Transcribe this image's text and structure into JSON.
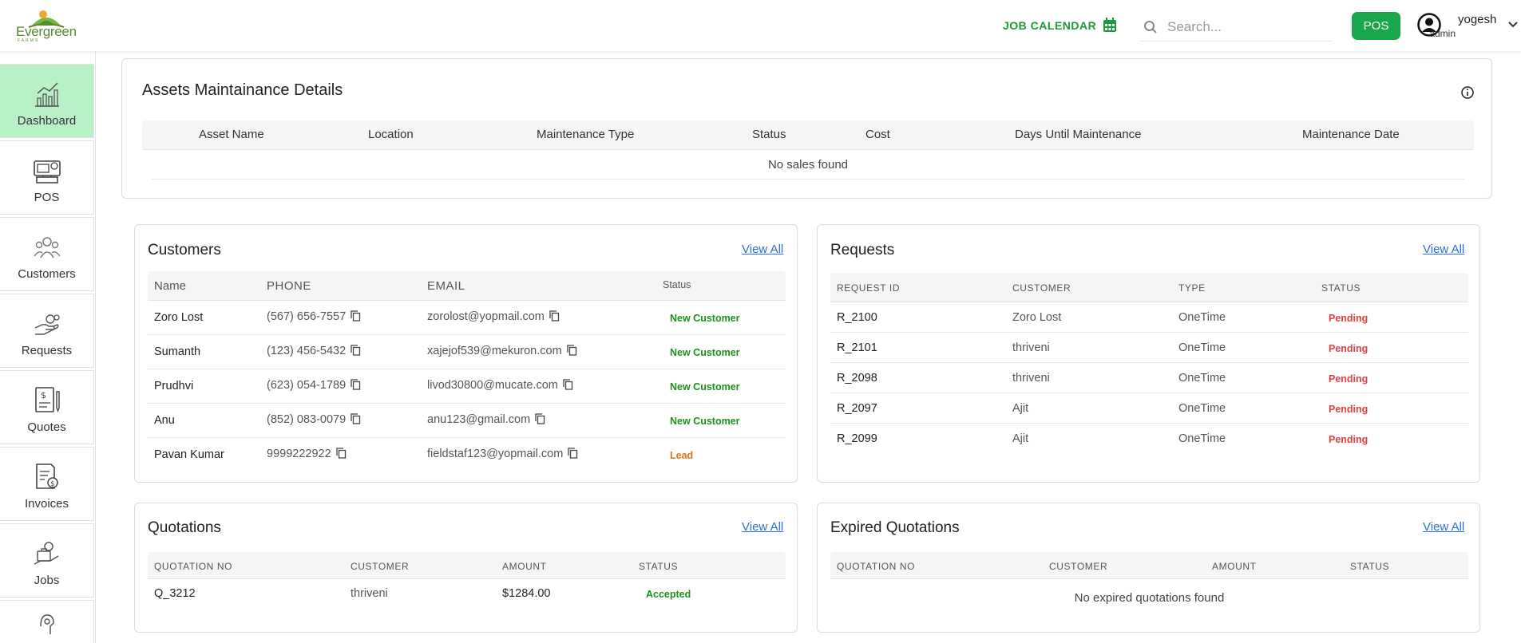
{
  "header": {
    "logo_text": "Evergreen",
    "logo_sub": "FARMS",
    "job_calendar_label": "JOB CALENDAR",
    "search_placeholder": "Search...",
    "pos_label": "POS",
    "user_name": "yogesh",
    "user_role": "admin"
  },
  "sidebar": {
    "items": [
      {
        "label": "Dashboard",
        "icon": "chart-icon",
        "active": true
      },
      {
        "label": "POS",
        "icon": "pos-icon"
      },
      {
        "label": "Customers",
        "icon": "customers-icon"
      },
      {
        "label": "Requests",
        "icon": "requests-icon"
      },
      {
        "label": "Quotes",
        "icon": "quotes-icon"
      },
      {
        "label": "Invoices",
        "icon": "invoices-icon"
      },
      {
        "label": "Jobs",
        "icon": "jobs-icon"
      }
    ]
  },
  "assets": {
    "title": "Assets Maintainance Details",
    "columns": [
      "Asset Name",
      "Location",
      "Maintenance Type",
      "Status",
      "Cost",
      "Days Until Maintenance",
      "Maintenance Date"
    ],
    "empty": "No sales found"
  },
  "customers": {
    "title": "Customers",
    "view_all": "View All",
    "columns": [
      "Name",
      "PHONE",
      "EMAIL",
      "Status"
    ],
    "rows": [
      {
        "name": "Zoro Lost",
        "phone": "(567) 656-7557",
        "email": "zorolost@yopmail.com",
        "status": "New Customer",
        "color": "#1f8f1f"
      },
      {
        "name": "Sumanth",
        "phone": "(123) 456-5432",
        "email": "xajejof539@mekuron.com",
        "status": "New Customer",
        "color": "#1f8f1f"
      },
      {
        "name": "Prudhvi",
        "phone": "(623) 054-1789",
        "email": "livod30800@mucate.com",
        "status": "New Customer",
        "color": "#1f8f1f"
      },
      {
        "name": "Anu",
        "phone": "(852) 083-0079",
        "email": "anu123@gmail.com",
        "status": "New Customer",
        "color": "#1f8f1f"
      },
      {
        "name": "Pavan Kumar",
        "phone": "9999222922",
        "email": "fieldstaf123@yopmail.com",
        "status": "Lead",
        "color": "#e0701a"
      }
    ]
  },
  "requests": {
    "title": "Requests",
    "view_all": "View All",
    "columns": [
      "REQUEST ID",
      "CUSTOMER",
      "TYPE",
      "STATUS"
    ],
    "rows": [
      {
        "id": "R_2100",
        "customer": "Zoro Lost",
        "type": "OneTime",
        "status": "Pending"
      },
      {
        "id": "R_2101",
        "customer": "thriveni",
        "type": "OneTime",
        "status": "Pending"
      },
      {
        "id": "R_2098",
        "customer": "thriveni",
        "type": "OneTime",
        "status": "Pending"
      },
      {
        "id": "R_2097",
        "customer": "Ajit",
        "type": "OneTime",
        "status": "Pending"
      },
      {
        "id": "R_2099",
        "customer": "Ajit",
        "type": "OneTime",
        "status": "Pending"
      }
    ]
  },
  "quotations": {
    "title": "Quotations",
    "view_all": "View All",
    "columns": [
      "QUOTATION NO",
      "CUSTOMER",
      "AMOUNT",
      "STATUS"
    ],
    "rows": [
      {
        "no": "Q_3212",
        "customer": "thriveni",
        "amount": "$1284.00",
        "status": "Accepted"
      }
    ]
  },
  "expired": {
    "title": "Expired Quotations",
    "view_all": "View All",
    "columns": [
      "QUOTATION NO",
      "CUSTOMER",
      "AMOUNT",
      "STATUS"
    ],
    "empty": "No expired quotations found"
  },
  "colors": {
    "brand_green": "#1aa74a",
    "active_nav": "#b8f0c8",
    "link": "#2a6fdb",
    "pending": "#e04040"
  }
}
